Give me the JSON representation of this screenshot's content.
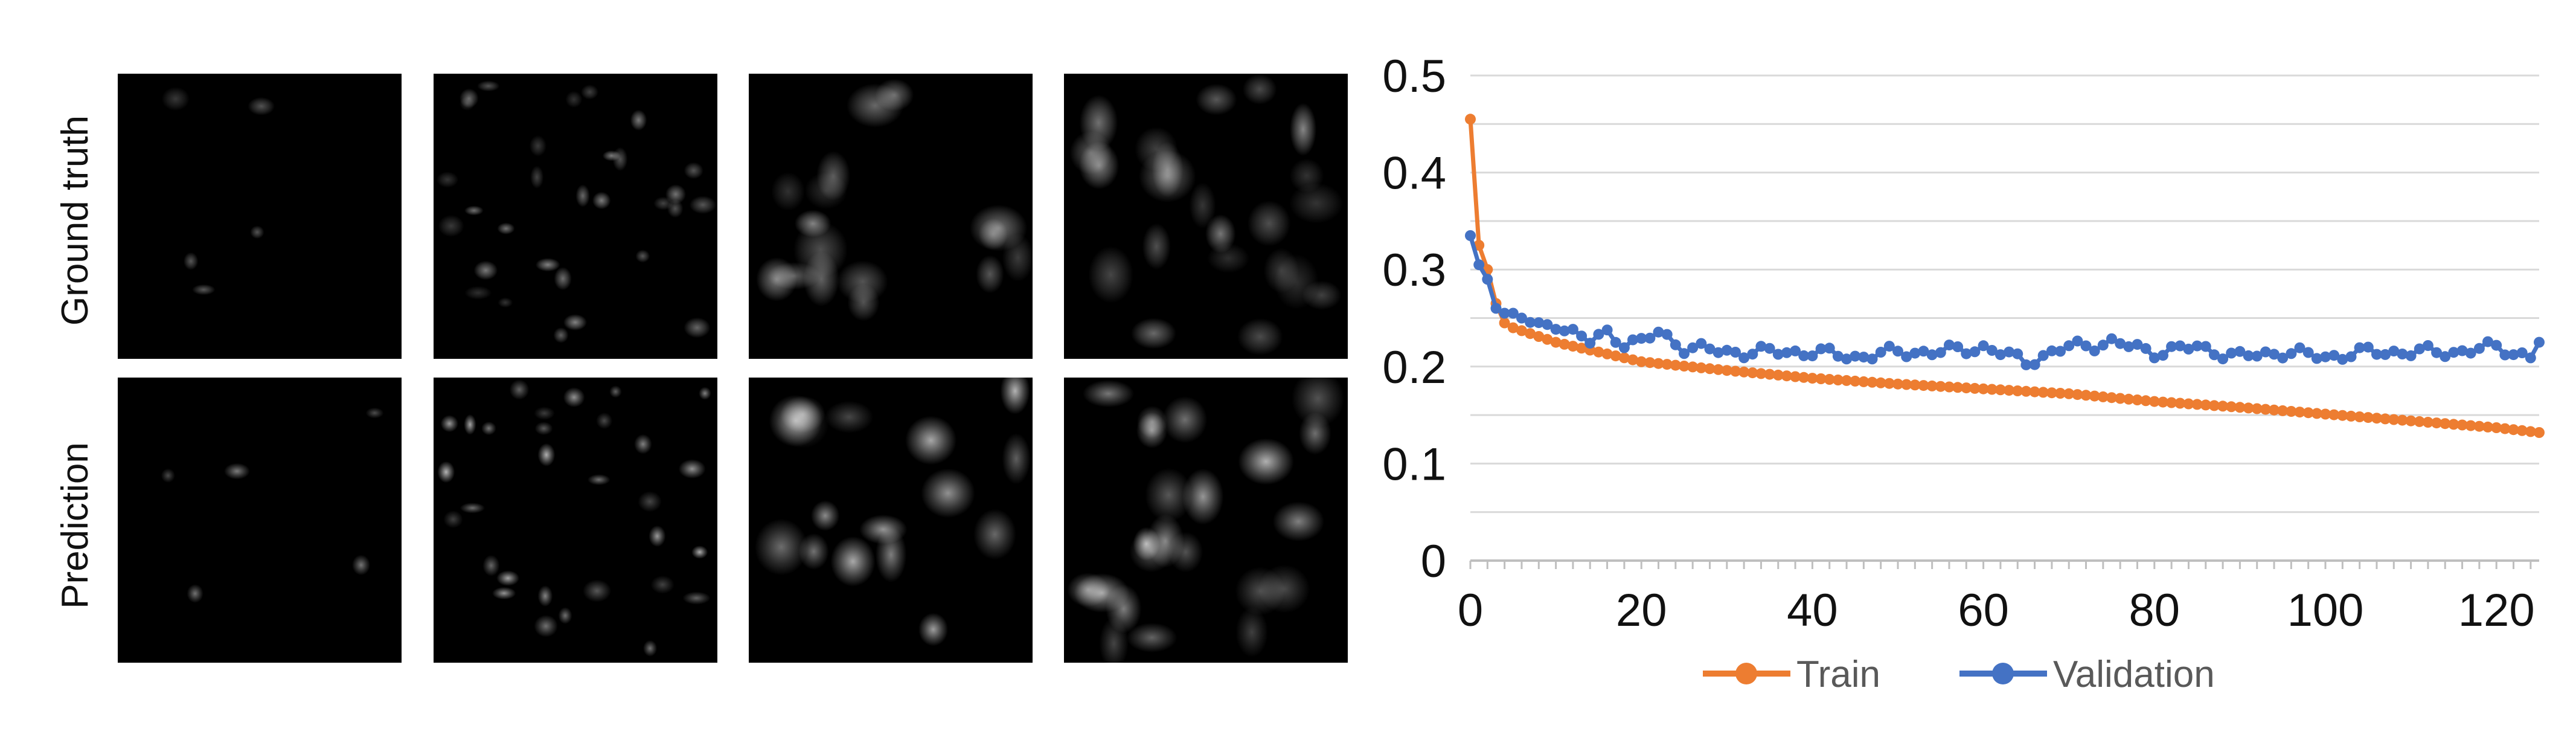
{
  "rows": {
    "ground_truth": "Ground truth",
    "prediction": "Prediction"
  },
  "panels": {
    "ground_truth": [
      "tile-1",
      "tile-2",
      "tile-3",
      "tile-4"
    ],
    "prediction": [
      "tile-1",
      "tile-2",
      "tile-3",
      "tile-4"
    ]
  },
  "chart_data": {
    "type": "line",
    "xlim": [
      0,
      125
    ],
    "ylim": [
      0,
      0.5
    ],
    "x_ticks": [
      "0",
      "20",
      "40",
      "60",
      "80",
      "100",
      "120"
    ],
    "y_ticks": [
      "0",
      "0.1",
      "0.2",
      "0.3",
      "0.4",
      "0.5"
    ],
    "grid": true,
    "legend_position": "bottom",
    "series": [
      {
        "name": "Train",
        "color": "#ED7D31",
        "x": [
          0,
          1,
          2,
          3,
          4,
          5,
          10,
          20,
          30,
          40,
          50,
          60,
          70,
          80,
          90,
          100,
          110,
          120,
          125
        ],
        "y": [
          0.455,
          0.325,
          0.3,
          0.265,
          0.245,
          0.24,
          0.225,
          0.205,
          0.196,
          0.188,
          0.182,
          0.177,
          0.172,
          0.164,
          0.158,
          0.151,
          0.144,
          0.137,
          0.132
        ]
      },
      {
        "name": "Validation",
        "color": "#4472C4",
        "x": [
          0,
          1,
          2,
          3,
          4,
          5,
          6,
          8,
          10,
          12,
          14,
          16,
          18,
          20,
          22,
          25,
          30,
          35,
          40,
          45,
          50,
          55,
          60,
          65,
          70,
          75,
          80,
          85,
          90,
          95,
          100,
          105,
          110,
          115,
          120,
          124,
          125
        ],
        "y": [
          0.335,
          0.305,
          0.29,
          0.26,
          0.255,
          0.255,
          0.25,
          0.24,
          0.245,
          0.235,
          0.225,
          0.235,
          0.225,
          0.225,
          0.235,
          0.22,
          0.215,
          0.215,
          0.215,
          0.21,
          0.215,
          0.215,
          0.22,
          0.205,
          0.22,
          0.225,
          0.215,
          0.22,
          0.21,
          0.215,
          0.21,
          0.215,
          0.215,
          0.215,
          0.22,
          0.21,
          0.225
        ]
      }
    ]
  }
}
